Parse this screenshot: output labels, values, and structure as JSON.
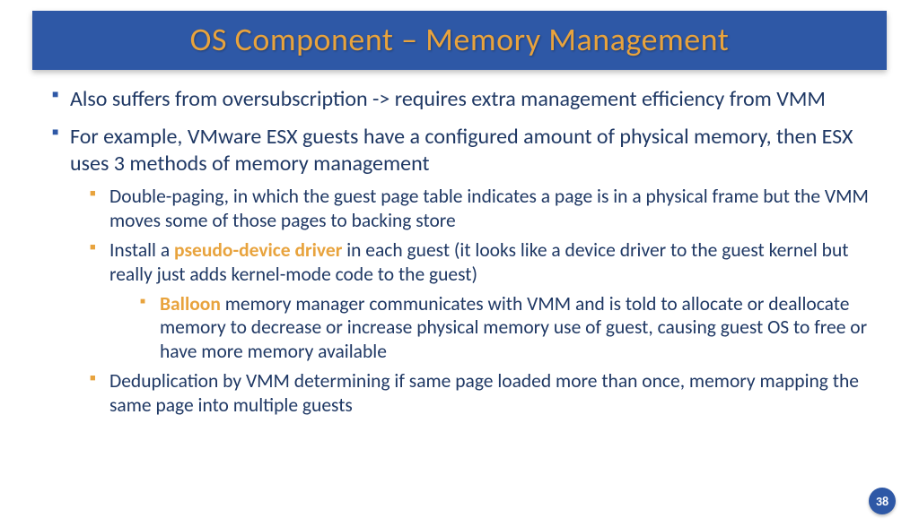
{
  "title": "OS Component – Memory Management",
  "bullets": {
    "b1": "Also suffers from oversubscription -> requires extra management efficiency from VMM",
    "b2": "For example, VMware ESX guests have a configured amount of physical memory, then ESX uses 3 methods of memory management",
    "b2_1": "Double-paging, in which the guest page table indicates a page is in a physical frame but the VMM moves some of those pages to backing store",
    "b2_2_pre": "Install a ",
    "b2_2_hl": "pseudo-device driver",
    "b2_2_post": " in each guest (it looks like a device driver to the guest kernel but really just adds kernel-mode code to the guest)",
    "b2_2_1_hl": "Balloon",
    "b2_2_1_post": " memory manager communicates with VMM and is told to allocate or deallocate memory to decrease or increase physical memory use of guest, causing guest OS to free or have more memory available",
    "b2_3": "Deduplication by VMM determining if same page loaded more than once, memory mapping the same page into multiple guests"
  },
  "page_number": "38",
  "colors": {
    "title_bg": "#2e58a6",
    "title_fg": "#e8a33d",
    "body_text": "#1f3864",
    "bullet_primary": "#2e58a6",
    "bullet_secondary": "#e8a33d",
    "highlight": "#e8a33d",
    "page_bg": "#ffffff"
  }
}
